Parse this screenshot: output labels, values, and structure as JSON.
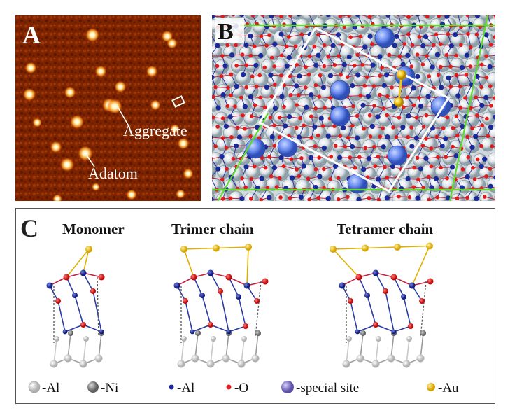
{
  "figure": {
    "panel_a": {
      "label": "A",
      "annotations": {
        "aggregate": "Aggregate",
        "adatom": "Adatom"
      },
      "colors": {
        "background": "#7a2200",
        "spot": "#fff4c8"
      }
    },
    "panel_b": {
      "label": "B",
      "colors": {
        "large_atom": "#dfe6ea",
        "al": "#1a2a9a",
        "o": "#e11b1b",
        "special": "#6c8cf0",
        "au": "#f2c419",
        "green_line": "#5fdc2a",
        "cell": "#ffffff"
      }
    },
    "panel_c": {
      "label": "C",
      "titles": {
        "monomer": "Monomer",
        "trimer": "Trimer chain",
        "tetramer": "Tetramer chain"
      },
      "legend": [
        {
          "label": "-Al",
          "color": "#e2e2e2"
        },
        {
          "label": "-Ni",
          "color": "#909090"
        },
        {
          "label": "-Al",
          "color": "#1a2a9a"
        },
        {
          "label": "-O",
          "color": "#e11b1b"
        },
        {
          "label": "-special site",
          "color": "#8a80c8"
        },
        {
          "label": "-Au",
          "color": "#f2c419"
        }
      ]
    }
  }
}
